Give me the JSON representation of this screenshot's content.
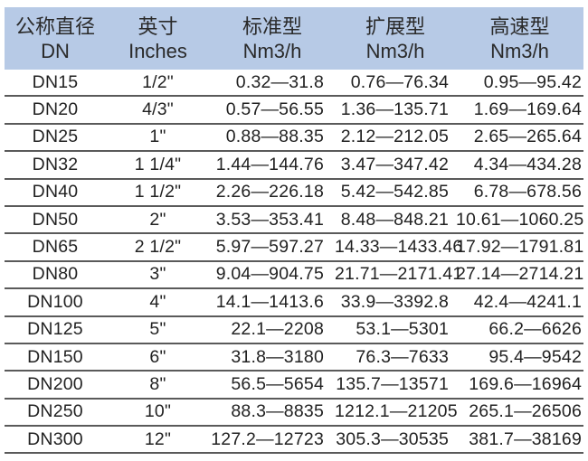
{
  "header": {
    "columns": [
      {
        "line1": "公称直径",
        "line2": "DN"
      },
      {
        "line1": "英寸",
        "line2": "Inches"
      },
      {
        "line1": "标准型",
        "line2": "Nm3/h"
      },
      {
        "line1": "扩展型",
        "line2": "Nm3/h"
      },
      {
        "line1": "高速型",
        "line2": "Nm3/h"
      }
    ]
  },
  "rows": [
    [
      "DN15",
      "1/2\"",
      "0.32—31.8",
      "0.76—76.34",
      "0.95—95.42"
    ],
    [
      "DN20",
      "4/3\"",
      "0.57—56.55",
      "1.36—135.71",
      "1.69—169.64"
    ],
    [
      "DN25",
      "1\"",
      "0.88—88.35",
      "2.12—212.05",
      "2.65—265.64"
    ],
    [
      "DN32",
      "1 1/4\"",
      "1.44—144.76",
      "3.47—347.42",
      "4.34—434.28"
    ],
    [
      "DN40",
      "1 1/2\"",
      "2.26—226.18",
      "5.42—542.85",
      "6.78—678.56"
    ],
    [
      "DN50",
      "2\"",
      "3.53—353.41",
      "8.48—848.21",
      "10.61—1060.25"
    ],
    [
      "DN65",
      "2 1/2\"",
      "5.97—597.27",
      "14.33—1433.46",
      "17.92—1791.81"
    ],
    [
      "DN80",
      "3\"",
      "9.04—904.75",
      "21.71—2171.41",
      "27.14—2714.21"
    ],
    [
      "DN100",
      "4\"",
      "14.1—1413.6",
      "33.9—3392.8",
      "42.4—4241.1"
    ],
    [
      "DN125",
      "5\"",
      "22.1—2208",
      "53.1—5301",
      "66.2—6626"
    ],
    [
      "DN150",
      "6\"",
      "31.8—3180",
      "76.3—7633",
      "95.4—9542"
    ],
    [
      "DN200",
      "8\"",
      "56.5—5654",
      "135.7—13571",
      "169.6—16964"
    ],
    [
      "DN250",
      "10\"",
      "88.3—8835",
      "1212.1—21205",
      "265.1—26506"
    ],
    [
      "DN300",
      "12\"",
      "127.2—12723",
      "305.3—30535",
      "381.7—38169"
    ]
  ],
  "colors": {
    "header_bg": "#b7cae6",
    "row_divider": "#5a5a5a"
  }
}
